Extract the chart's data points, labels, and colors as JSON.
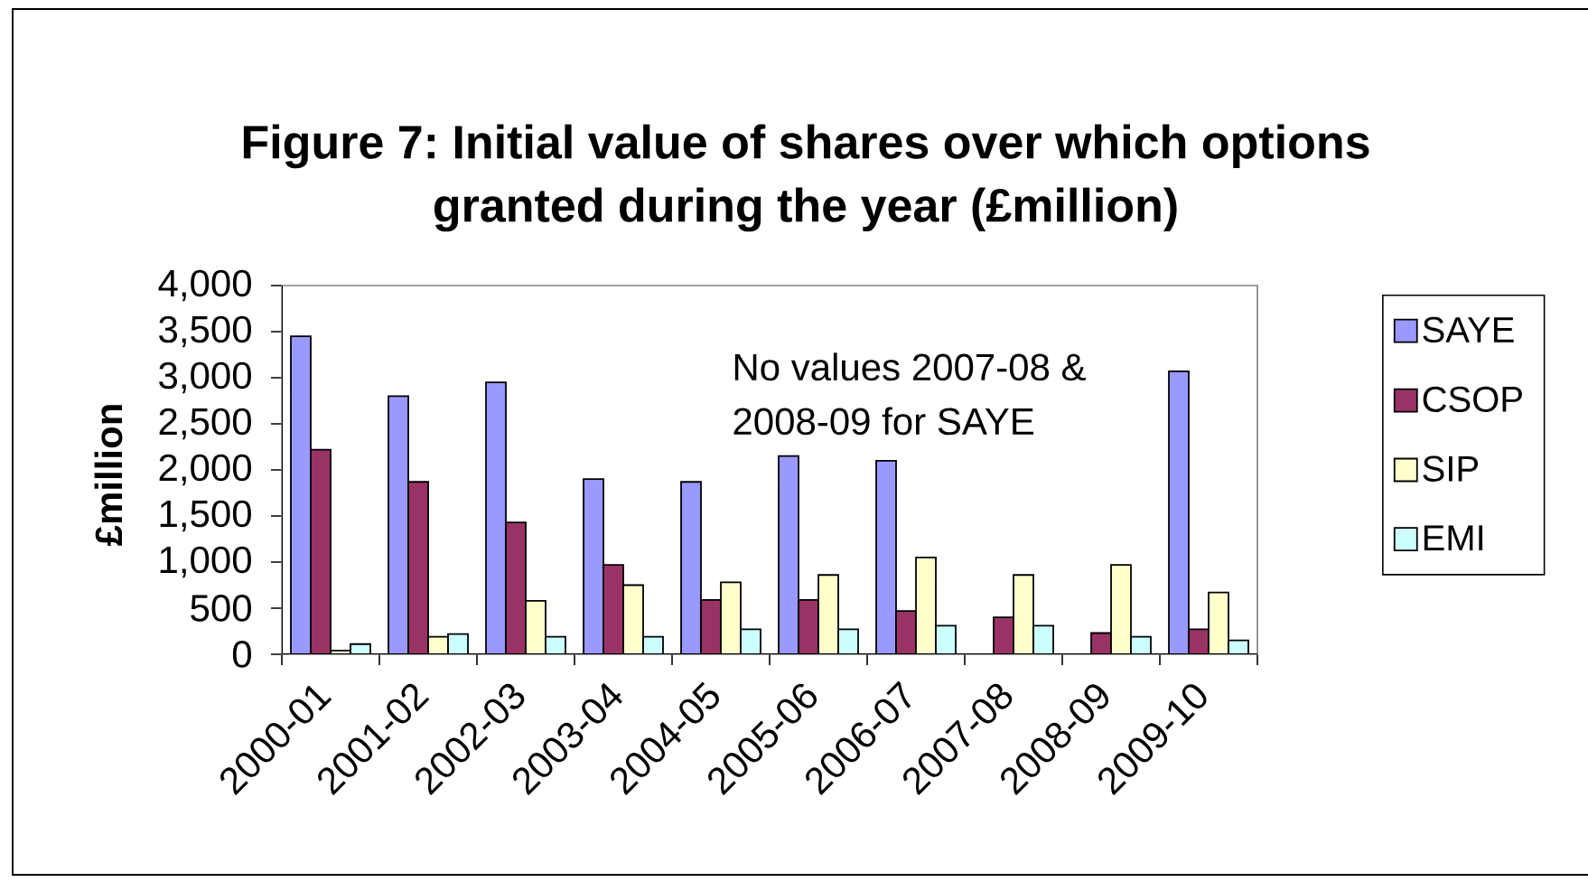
{
  "chart_data": {
    "type": "bar",
    "title": "Figure 7: Initial value of shares over which options granted during the year (£million)",
    "ylabel": "£million",
    "annotations": [
      "No values 2007-08 & 2008-09 for SAYE"
    ],
    "categories": [
      "2000-01",
      "2001-02",
      "2002-03",
      "2003-04",
      "2004-05",
      "2005-06",
      "2006-07",
      "2007-08",
      "2008-09",
      "2009-10"
    ],
    "series": [
      {
        "name": "SAYE",
        "color": "#9999ff",
        "values": [
          3450,
          2800,
          2950,
          1900,
          1870,
          2150,
          2100,
          null,
          null,
          3070
        ]
      },
      {
        "name": "CSOP",
        "color": "#993366",
        "values": [
          2220,
          1870,
          1430,
          970,
          590,
          590,
          470,
          400,
          230,
          270
        ]
      },
      {
        "name": "SIP",
        "color": "#ffffcc",
        "values": [
          40,
          190,
          580,
          750,
          780,
          860,
          1050,
          860,
          970,
          670
        ]
      },
      {
        "name": "EMI",
        "color": "#ccffff",
        "values": [
          110,
          220,
          190,
          190,
          270,
          270,
          310,
          310,
          190,
          150
        ]
      }
    ],
    "ylim": [
      0,
      4000
    ],
    "yticks": [
      0,
      500,
      {
        "value": 1000,
        "label": "1,000"
      },
      {
        "value": 1500,
        "label": "1,500"
      },
      {
        "value": 2000,
        "label": "2,000"
      },
      {
        "value": 2500,
        "label": "2,500"
      },
      {
        "value": 3000,
        "label": "3,000"
      },
      {
        "value": 3500,
        "label": "3,500"
      },
      {
        "value": 4000,
        "label": "4,000"
      }
    ],
    "legend": "right"
  }
}
